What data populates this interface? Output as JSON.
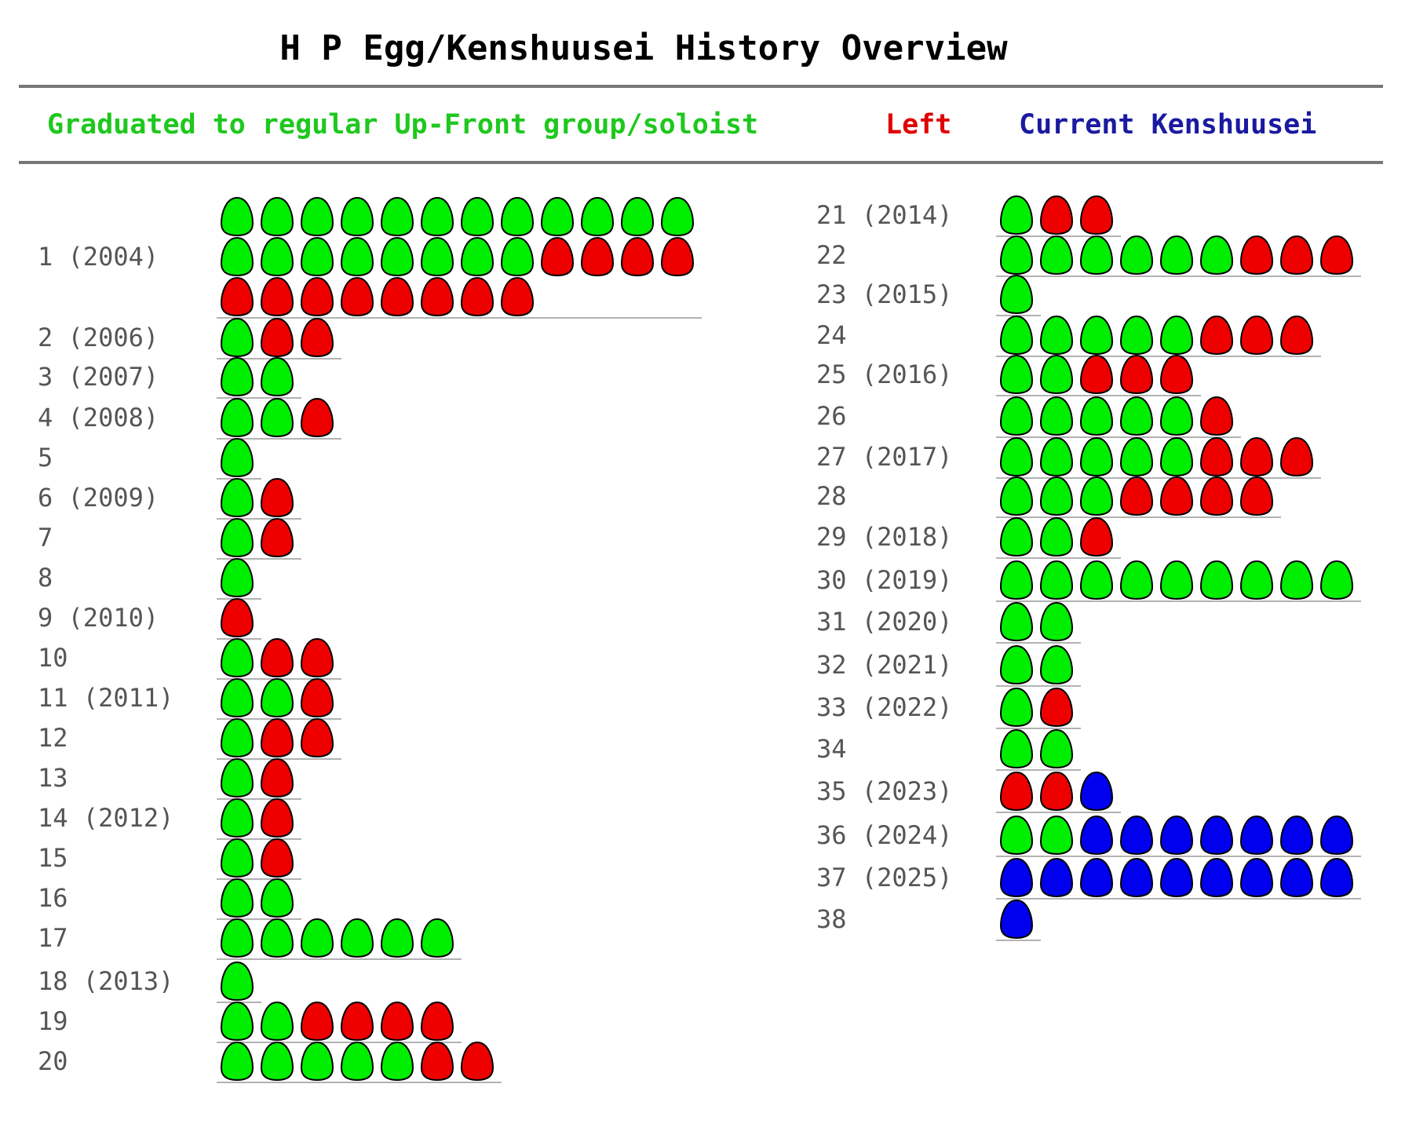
{
  "chart_data": {
    "type": "table",
    "title": "H P Egg/Kenshuusei History Overview",
    "legend": [
      {
        "key": "graduated",
        "label": "Graduated to regular Up-Front group/soloist",
        "color": "#1ec81e"
      },
      {
        "key": "left",
        "label": "Left",
        "color": "#e00000"
      },
      {
        "key": "current",
        "label": "Current Kenshuusei",
        "color": "#1a1aa0"
      }
    ],
    "egg_colors": {
      "graduated": "#00ee00",
      "left": "#ee0000",
      "current": "#0000ee"
    },
    "rows": [
      {
        "label": "1  (2004)",
        "graduated": 20,
        "left": 12,
        "current": 0
      },
      {
        "label": "2  (2006)",
        "graduated": 1,
        "left": 2,
        "current": 0
      },
      {
        "label": "3  (2007)",
        "graduated": 2,
        "left": 0,
        "current": 0
      },
      {
        "label": "4  (2008)",
        "graduated": 2,
        "left": 1,
        "current": 0
      },
      {
        "label": "5",
        "graduated": 1,
        "left": 0,
        "current": 0
      },
      {
        "label": "6  (2009)",
        "graduated": 1,
        "left": 1,
        "current": 0
      },
      {
        "label": "7",
        "graduated": 1,
        "left": 1,
        "current": 0
      },
      {
        "label": "8",
        "graduated": 1,
        "left": 0,
        "current": 0
      },
      {
        "label": "9  (2010)",
        "graduated": 0,
        "left": 1,
        "current": 0
      },
      {
        "label": "10",
        "graduated": 1,
        "left": 2,
        "current": 0
      },
      {
        "label": "11  (2011)",
        "graduated": 2,
        "left": 1,
        "current": 0
      },
      {
        "label": "12",
        "graduated": 1,
        "left": 2,
        "current": 0
      },
      {
        "label": "13",
        "graduated": 1,
        "left": 1,
        "current": 0
      },
      {
        "label": "14  (2012)",
        "graduated": 1,
        "left": 1,
        "current": 0
      },
      {
        "label": "15",
        "graduated": 1,
        "left": 1,
        "current": 0
      },
      {
        "label": "16",
        "graduated": 2,
        "left": 0,
        "current": 0
      },
      {
        "label": "17",
        "graduated": 6,
        "left": 0,
        "current": 0
      },
      {
        "label": "18  (2013)",
        "graduated": 1,
        "left": 0,
        "current": 0
      },
      {
        "label": "19",
        "graduated": 2,
        "left": 4,
        "current": 0
      },
      {
        "label": "20",
        "graduated": 5,
        "left": 2,
        "current": 0
      },
      {
        "label": "21  (2014)",
        "graduated": 1,
        "left": 2,
        "current": 0
      },
      {
        "label": "22",
        "graduated": 6,
        "left": 3,
        "current": 0
      },
      {
        "label": "23  (2015)",
        "graduated": 1,
        "left": 0,
        "current": 0
      },
      {
        "label": "24",
        "graduated": 5,
        "left": 3,
        "current": 0
      },
      {
        "label": "25  (2016)",
        "graduated": 2,
        "left": 3,
        "current": 0
      },
      {
        "label": "26",
        "graduated": 5,
        "left": 1,
        "current": 0
      },
      {
        "label": "27  (2017)",
        "graduated": 5,
        "left": 3,
        "current": 0
      },
      {
        "label": "28",
        "graduated": 3,
        "left": 4,
        "current": 0
      },
      {
        "label": "29  (2018)",
        "graduated": 2,
        "left": 1,
        "current": 0
      },
      {
        "label": "30  (2019)",
        "graduated": 9,
        "left": 0,
        "current": 0
      },
      {
        "label": "31  (2020)",
        "graduated": 2,
        "left": 0,
        "current": 0
      },
      {
        "label": "32  (2021)",
        "graduated": 2,
        "left": 0,
        "current": 0
      },
      {
        "label": "33  (2022)",
        "graduated": 1,
        "left": 1,
        "current": 0
      },
      {
        "label": "34",
        "graduated": 2,
        "left": 0,
        "current": 0
      },
      {
        "label": "35  (2023)",
        "graduated": 0,
        "left": 2,
        "current": 1
      },
      {
        "label": "36  (2024)",
        "graduated": 2,
        "left": 0,
        "current": 7
      },
      {
        "label": "37  (2025)",
        "graduated": 0,
        "left": 0,
        "current": 9
      },
      {
        "label": "38",
        "graduated": 0,
        "left": 0,
        "current": 1
      }
    ]
  }
}
